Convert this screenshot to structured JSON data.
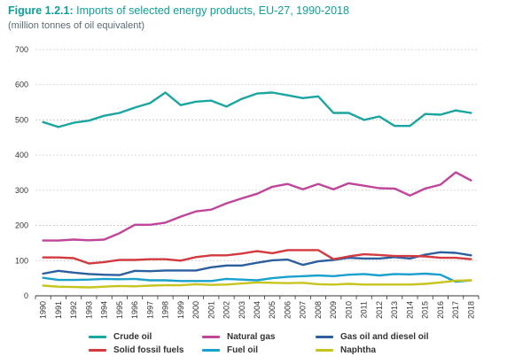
{
  "header": {
    "figure_label": "Figure 1.2.1:",
    "title": "Imports of selected energy products, EU-27, 1990-2018",
    "subtitle": "(million tonnes of oil equivalent)"
  },
  "chart_data": {
    "type": "line",
    "title": "Imports of selected energy products, EU-27, 1990-2018",
    "subtitle": "(million tonnes of oil equivalent)",
    "xlabel": "",
    "ylabel": "",
    "ylim": [
      0,
      700
    ],
    "yticks": [
      0,
      100,
      200,
      300,
      400,
      500,
      600,
      700
    ],
    "grid": true,
    "legend_placement": "bottom",
    "x": [
      "1990",
      "1991",
      "1992",
      "1993",
      "1994",
      "1995",
      "1996",
      "1997",
      "1998",
      "1999",
      "2000",
      "2001",
      "2002",
      "2003",
      "2004",
      "2005",
      "2006",
      "2007",
      "2008",
      "2009",
      "2010",
      "2011",
      "2012",
      "2013",
      "2014",
      "2015",
      "2016",
      "2017",
      "2018"
    ],
    "series": [
      {
        "name": "Crude oil",
        "color": "#1aa6a0",
        "values": [
          494,
          480,
          492,
          498,
          512,
          520,
          535,
          548,
          578,
          542,
          552,
          555,
          538,
          560,
          575,
          578,
          570,
          562,
          567,
          520,
          520,
          500,
          510,
          483,
          483,
          517,
          515,
          527,
          520
        ]
      },
      {
        "name": "Natural gas",
        "color": "#c0459a",
        "values": [
          157,
          157,
          160,
          158,
          160,
          178,
          202,
          202,
          208,
          225,
          240,
          245,
          263,
          277,
          290,
          310,
          318,
          303,
          318,
          303,
          320,
          313,
          306,
          305,
          285,
          305,
          316,
          351,
          328
        ]
      },
      {
        "name": "Gas oil and diesel oil",
        "color": "#2c5f9e",
        "values": [
          63,
          71,
          66,
          62,
          60,
          59,
          71,
          70,
          72,
          72,
          72,
          81,
          86,
          86,
          94,
          101,
          103,
          88,
          98,
          102,
          108,
          106,
          106,
          110,
          106,
          117,
          124,
          122,
          115
        ]
      },
      {
        "name": "Solid fossil fuels",
        "color": "#d33a3f",
        "values": [
          109,
          109,
          107,
          92,
          96,
          102,
          102,
          104,
          104,
          100,
          110,
          115,
          115,
          120,
          127,
          121,
          130,
          130,
          130,
          104,
          112,
          118,
          116,
          113,
          113,
          112,
          108,
          108,
          104
        ]
      },
      {
        "name": "Fuel oil",
        "color": "#1aa0cc",
        "values": [
          51,
          45,
          45,
          46,
          48,
          47,
          48,
          44,
          44,
          42,
          42,
          42,
          48,
          46,
          44,
          50,
          54,
          56,
          58,
          56,
          60,
          62,
          58,
          62,
          61,
          63,
          60,
          40,
          44
        ]
      },
      {
        "name": "Naphtha",
        "color": "#c8c41e",
        "values": [
          29,
          26,
          25,
          24,
          26,
          28,
          27,
          29,
          30,
          30,
          33,
          31,
          32,
          35,
          38,
          37,
          36,
          37,
          33,
          32,
          34,
          32,
          32,
          32,
          32,
          34,
          38,
          43,
          44
        ]
      }
    ]
  }
}
